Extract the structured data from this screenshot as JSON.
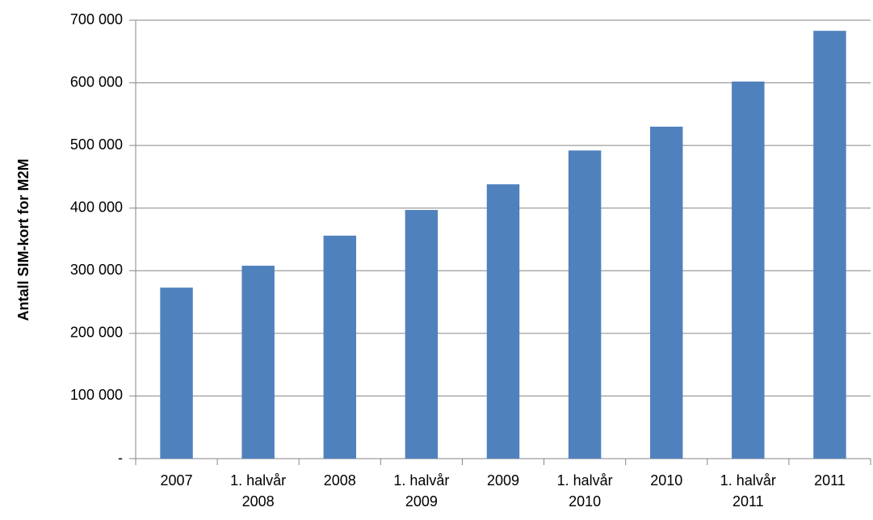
{
  "chart_data": {
    "type": "bar",
    "y_axis_label": "Antall SIM-kort for M2M",
    "categories": [
      "2007",
      "1. halvår 2008",
      "2008",
      "1. halvår 2009",
      "2009",
      "1. halvår 2010",
      "2010",
      "1. halvår 2011",
      "2011"
    ],
    "values": [
      273000,
      308000,
      356000,
      397000,
      438000,
      492000,
      530000,
      602000,
      683000
    ],
    "color": "#4f81bd",
    "ylim": [
      0,
      700000
    ],
    "yticks": [
      {
        "value": 0,
        "label": "-"
      },
      {
        "value": 100000,
        "label": "100 000"
      },
      {
        "value": 200000,
        "label": "200 000"
      },
      {
        "value": 300000,
        "label": "300 000"
      },
      {
        "value": 400000,
        "label": "400 000"
      },
      {
        "value": 500000,
        "label": "500 000"
      },
      {
        "value": 600000,
        "label": "600 000"
      },
      {
        "value": 700000,
        "label": "700 000"
      }
    ],
    "grid": true
  }
}
